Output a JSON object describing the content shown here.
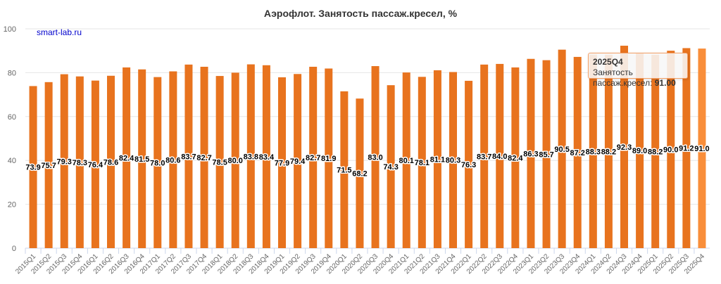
{
  "chart_data": {
    "type": "bar",
    "title": "Аэрофлот. Занятость пассаж.кресел, %",
    "credit": "smart-lab.ru",
    "series_name": "Занятость пассаж.кресел",
    "ylim": [
      0,
      100
    ],
    "yticks": [
      0,
      20,
      40,
      60,
      80,
      100
    ],
    "grid": true,
    "categories": [
      "2015Q1",
      "2015Q2",
      "2015Q3",
      "2015Q4",
      "2016Q1",
      "2016Q2",
      "2016Q3",
      "2016Q4",
      "2017Q1",
      "2017Q2",
      "2017Q3",
      "2017Q4",
      "2018Q1",
      "2018Q2",
      "2018Q3",
      "2018Q4",
      "2019Q1",
      "2019Q2",
      "2019Q3",
      "2019Q4",
      "2020Q1",
      "2020Q2",
      "2020Q3",
      "2020Q4",
      "2021Q1",
      "2021Q2",
      "2021Q3",
      "2021Q4",
      "2022Q1",
      "2022Q2",
      "2022Q3",
      "2022Q4",
      "2023Q1",
      "2023Q2",
      "2023Q3",
      "2023Q4",
      "2024Q1",
      "2024Q2",
      "2024Q3",
      "2024Q4",
      "2025Q1",
      "2025Q2",
      "2025Q3",
      "2025Q4"
    ],
    "values": [
      73.9,
      75.7,
      79.3,
      78.3,
      76.4,
      78.6,
      82.4,
      81.5,
      78.0,
      80.6,
      83.7,
      82.7,
      78.5,
      80.0,
      83.8,
      83.4,
      77.9,
      79.4,
      82.7,
      81.9,
      71.5,
      68.2,
      83.0,
      74.3,
      80.1,
      78.1,
      81.1,
      80.3,
      76.3,
      83.7,
      84.0,
      82.4,
      86.3,
      85.7,
      90.5,
      87.2,
      88.3,
      88.2,
      92.3,
      89.0,
      88.2,
      90.0,
      91.2,
      91.0
    ],
    "colors": {
      "bar": "#e8731e",
      "hover": "#f98e3a"
    },
    "hovered_index": 43,
    "tooltip": {
      "category": "2025Q4",
      "label": "Занятость пассаж.кресел: ",
      "value": "91.00"
    }
  }
}
